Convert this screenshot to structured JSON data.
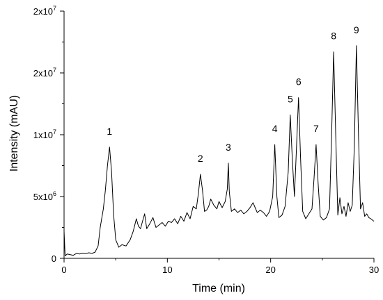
{
  "chart_data": {
    "type": "line",
    "title": "",
    "xlabel": "Time (min)",
    "ylabel": "Intensity (mAU)",
    "xlim": [
      0,
      30
    ],
    "ylim": [
      0,
      20000000
    ],
    "grid": false,
    "legend": "none",
    "x_ticks": [
      {
        "value": 0,
        "label": "0"
      },
      {
        "value": 10,
        "label": "10"
      },
      {
        "value": 20,
        "label": "20"
      },
      {
        "value": 30,
        "label": "30"
      }
    ],
    "y_ticks": [
      {
        "value": 0,
        "base": "0",
        "exp": ""
      },
      {
        "value": 5000000,
        "base": "5x10",
        "exp": "6"
      },
      {
        "value": 10000000,
        "base": "1x10",
        "exp": "7"
      },
      {
        "value": 15000000,
        "base": "2x10",
        "exp": "7"
      },
      {
        "value": 20000000,
        "base": "2x10",
        "exp": "7"
      }
    ],
    "annotations": [
      {
        "label": "1",
        "x": 4.4,
        "y": 9000000
      },
      {
        "label": "2",
        "x": 13.2,
        "y": 6800000
      },
      {
        "label": "3",
        "x": 15.9,
        "y": 7700000
      },
      {
        "label": "4",
        "x": 20.4,
        "y": 9200000
      },
      {
        "label": "5",
        "x": 21.9,
        "y": 11600000
      },
      {
        "label": "6",
        "x": 22.7,
        "y": 13000000
      },
      {
        "label": "7",
        "x": 24.4,
        "y": 9200000
      },
      {
        "label": "8",
        "x": 26.1,
        "y": 16700000
      },
      {
        "label": "9",
        "x": 28.3,
        "y": 17200000
      }
    ],
    "series": [
      {
        "color": "#000000",
        "x": [
          0,
          0.1,
          0.3,
          0.6,
          0.9,
          1.2,
          1.5,
          1.8,
          2.1,
          2.4,
          2.7,
          3.0,
          3.3,
          3.5,
          3.8,
          4.0,
          4.2,
          4.4,
          4.6,
          4.8,
          5.0,
          5.3,
          5.6,
          6.0,
          6.4,
          6.7,
          7.0,
          7.2,
          7.4,
          7.6,
          7.8,
          8.0,
          8.3,
          8.6,
          8.9,
          9.2,
          9.5,
          9.8,
          10.1,
          10.4,
          10.7,
          11.0,
          11.3,
          11.6,
          11.9,
          12.2,
          12.5,
          12.8,
          13.0,
          13.2,
          13.4,
          13.6,
          13.8,
          14.0,
          14.2,
          14.5,
          14.8,
          15.0,
          15.3,
          15.6,
          15.8,
          15.9,
          16.0,
          16.2,
          16.5,
          16.8,
          17.1,
          17.4,
          17.7,
          18.0,
          18.3,
          18.5,
          18.7,
          19.0,
          19.3,
          19.6,
          19.9,
          20.2,
          20.4,
          20.6,
          20.8,
          21.1,
          21.4,
          21.7,
          21.9,
          22.1,
          22.3,
          22.5,
          22.7,
          22.9,
          23.1,
          23.4,
          23.7,
          24.0,
          24.2,
          24.4,
          24.6,
          24.8,
          25.1,
          25.4,
          25.7,
          25.9,
          26.1,
          26.3,
          26.5,
          26.7,
          26.9,
          27.1,
          27.3,
          27.5,
          27.7,
          27.9,
          28.1,
          28.3,
          28.5,
          28.7,
          28.9,
          29.1,
          29.3,
          29.5,
          29.7,
          30.0
        ],
        "y": [
          2200000,
          200000,
          350000,
          300000,
          250000,
          400000,
          350000,
          420000,
          380000,
          450000,
          400000,
          500000,
          1000000,
          2500000,
          4000000,
          5500000,
          7500000,
          9000000,
          7000000,
          3500000,
          1500000,
          900000,
          1100000,
          1000000,
          1500000,
          2200000,
          3200000,
          2600000,
          2400000,
          3000000,
          3600000,
          2400000,
          2800000,
          3300000,
          2500000,
          2700000,
          2900000,
          2600000,
          3000000,
          2900000,
          3200000,
          2800000,
          3400000,
          3000000,
          3700000,
          3200000,
          4200000,
          4000000,
          5200000,
          6800000,
          5500000,
          3800000,
          3900000,
          4200000,
          4800000,
          4300000,
          4000000,
          4600000,
          4100000,
          4600000,
          5600000,
          7700000,
          5400000,
          3800000,
          4000000,
          3700000,
          3900000,
          3600000,
          3800000,
          4100000,
          4500000,
          4100000,
          3700000,
          3900000,
          3700000,
          3400000,
          3800000,
          5000000,
          9200000,
          5000000,
          3300000,
          3500000,
          4200000,
          7000000,
          11600000,
          8000000,
          5000000,
          9000000,
          13000000,
          8000000,
          3800000,
          3200000,
          3600000,
          4000000,
          6500000,
          9200000,
          6000000,
          3400000,
          3100000,
          3300000,
          4000000,
          10000000,
          16700000,
          10000000,
          3500000,
          4900000,
          3600000,
          4200000,
          3400000,
          4500000,
          3800000,
          4300000,
          9000000,
          17200000,
          10000000,
          4000000,
          4500000,
          3400000,
          3600000,
          3300000,
          3200000,
          3000000
        ]
      }
    ]
  }
}
